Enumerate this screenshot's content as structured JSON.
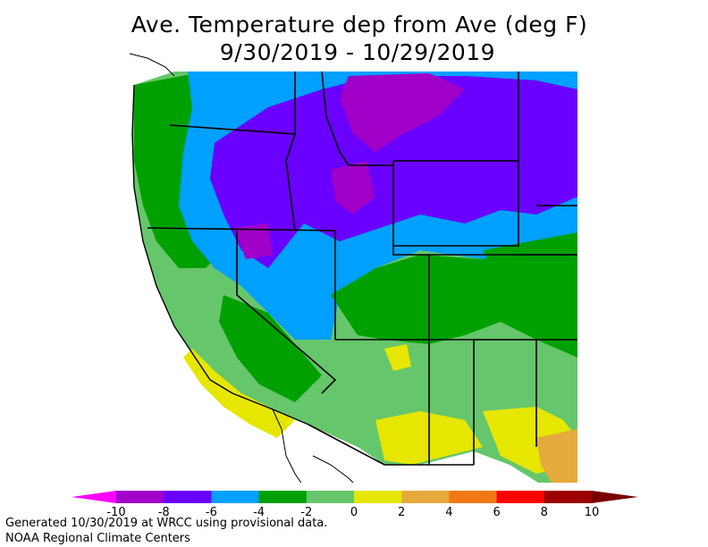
{
  "title": {
    "line1": "Ave. Temperature dep from Ave (deg F)",
    "line2": "9/30/2019 - 10/29/2019"
  },
  "legend": {
    "ticks": [
      "-10",
      "-8",
      "-6",
      "-4",
      "-2",
      "0",
      "2",
      "4",
      "6",
      "8",
      "10"
    ],
    "colors": [
      "#ff00ff",
      "#a100c8",
      "#6a00ff",
      "#00a0ff",
      "#00a000",
      "#66c66b",
      "#e6e600",
      "#e6aa3c",
      "#f07814",
      "#ff0000",
      "#9c0000",
      "#780000"
    ]
  },
  "map": {
    "region_colors": {
      "very_cold": "#a100c8",
      "cold": "#6a00ff",
      "cool": "#00a0ff",
      "slightly_cool": "#00a000",
      "near_normal_cool": "#66c66b",
      "slightly_warm": "#e6e600",
      "warm": "#e6aa3c"
    }
  },
  "footer": {
    "line1": "Generated 10/30/2019 at WRCC using provisional data.",
    "line2": "NOAA Regional Climate Centers"
  }
}
